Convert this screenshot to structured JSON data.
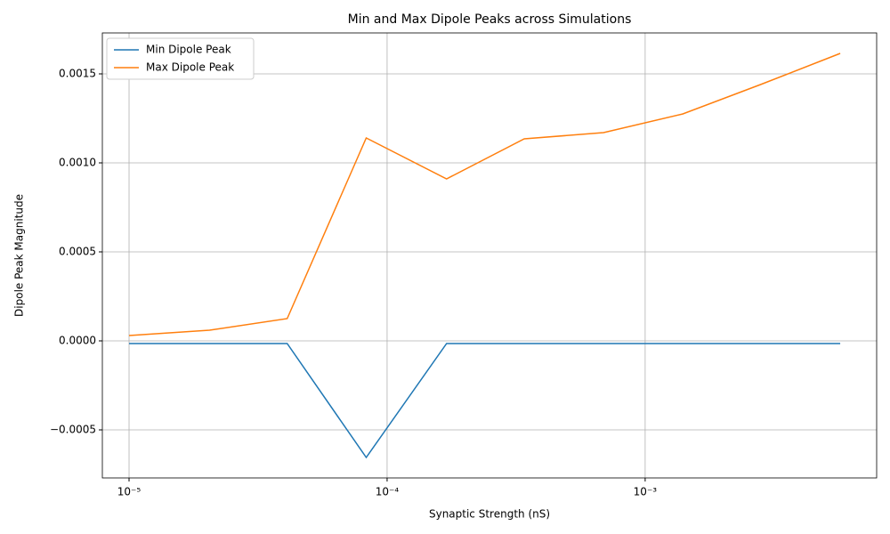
{
  "chart_data": {
    "type": "line",
    "title": "Min and Max Dipole Peaks across Simulations",
    "x_label": "Synaptic Strength (nS)",
    "y_label": "Dipole Peak Magnitude",
    "x": [
      1e-05,
      2.05e-05,
      4.1e-05,
      8.3e-05,
      0.00017,
      0.00034,
      0.00069,
      0.0014,
      0.0028,
      0.0057
    ],
    "series": [
      {
        "name": "Min Dipole Peak",
        "color": "#1f77b4",
        "values": [
          -1.5e-05,
          -1.5e-05,
          -1.5e-05,
          -0.000655,
          -1.5e-05,
          -1.5e-05,
          -1.5e-05,
          -1.5e-05,
          -1.5e-05,
          -1.5e-05
        ]
      },
      {
        "name": "Max Dipole Peak",
        "color": "#ff7f0e",
        "values": [
          3e-05,
          6e-05,
          0.000125,
          0.00114,
          0.00091,
          0.001135,
          0.00117,
          0.001275,
          0.00144,
          0.001615
        ]
      }
    ],
    "x_log": true,
    "xlim": [
      7.88e-06,
      0.00789
    ],
    "xticks": [
      {
        "value": 1e-05,
        "label": "10⁻⁵"
      },
      {
        "value": 0.0001,
        "label": "10⁻⁴"
      },
      {
        "value": 0.001,
        "label": "10⁻³"
      }
    ],
    "ylim": [
      -0.00077,
      0.00173
    ],
    "yticks": [
      {
        "value": -0.0005,
        "label": "−0.0005"
      },
      {
        "value": 0,
        "label": "0.0000"
      },
      {
        "value": 0.0005,
        "label": "0.0005"
      },
      {
        "value": 0.001,
        "label": "0.0010"
      },
      {
        "value": 0.0015,
        "label": "0.0015"
      }
    ],
    "grid": true,
    "legend": "upper-left"
  }
}
